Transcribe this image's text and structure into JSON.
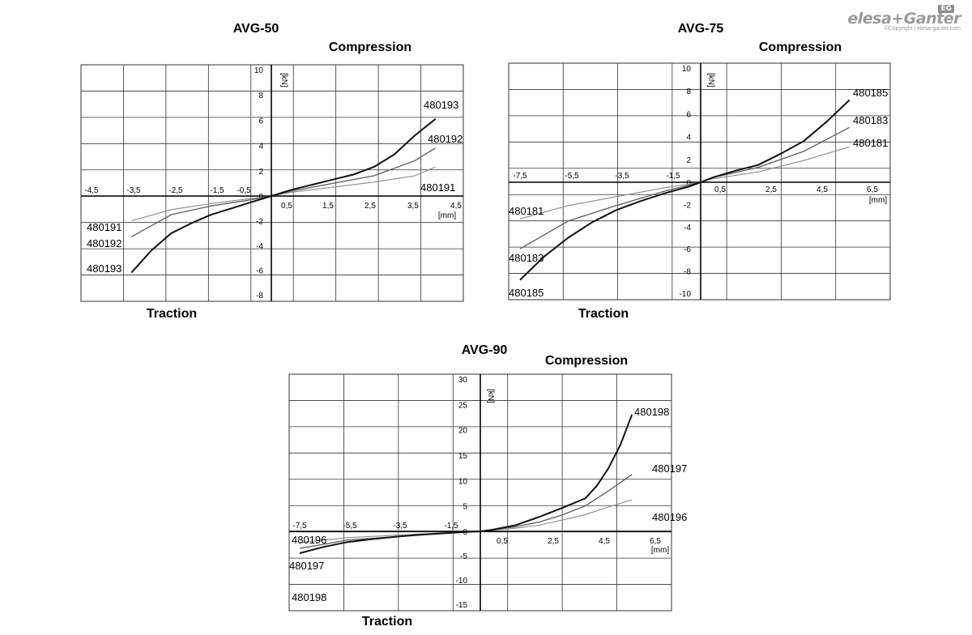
{
  "logo": {
    "brand": "elesa+Ganter",
    "badge": "EG",
    "copyright": "©Copyright | elesa-ganter.com"
  },
  "colors": {
    "grid": "#333333",
    "thin": "#8a8a8a",
    "medium": "#5a5a5a",
    "thick": "#111111"
  },
  "chart_data": [
    {
      "type": "line",
      "title": "AVG-50",
      "top_label": "Compression",
      "bottom_label": "Traction",
      "xunit": "[mm]",
      "yunit": "[kN]",
      "xlim": [
        -4.5,
        4.5
      ],
      "ylim": [
        -8,
        10
      ],
      "x_ticks_neg": [
        "-4,5",
        "-3,5",
        "-2,5",
        "-1,5",
        "-0,5"
      ],
      "x_ticks_pos": [
        "0,5",
        "1,5",
        "2,5",
        "3,5",
        "4,5"
      ],
      "y_ticks": [
        "10",
        "8",
        "6",
        "4",
        "2",
        "0",
        "-2",
        "-4",
        "-6",
        "-8"
      ],
      "grid": true,
      "series": [
        {
          "name": "480191",
          "label_pos": "480191",
          "label_neg": "480191",
          "weight": "thin",
          "x": [
            -3.5,
            -2.5,
            -1.5,
            -0.5,
            0,
            0.5,
            1.5,
            2.5,
            3.5,
            4.0
          ],
          "y": [
            -2.0,
            -1.1,
            -0.6,
            -0.2,
            0,
            0.3,
            0.7,
            1.1,
            1.6,
            2.3
          ]
        },
        {
          "name": "480192",
          "label_pos": "480192",
          "label_neg": "480192",
          "weight": "medium",
          "x": [
            -3.5,
            -2.5,
            -1.5,
            -0.5,
            0,
            0.5,
            1.5,
            2.5,
            3.5,
            4.0
          ],
          "y": [
            -3.3,
            -1.5,
            -0.8,
            -0.3,
            0,
            0.4,
            1.0,
            1.6,
            2.8,
            3.8
          ]
        },
        {
          "name": "480193",
          "label_pos": "480193",
          "label_neg": "480193",
          "weight": "thick",
          "x": [
            -3.5,
            -3.0,
            -2.5,
            -2.0,
            -1.5,
            -1.0,
            -0.5,
            0,
            0.5,
            1.0,
            1.5,
            2.0,
            2.5,
            3.0,
            3.5,
            4.0
          ],
          "y": [
            -6.2,
            -4.4,
            -3.0,
            -2.2,
            -1.5,
            -1.0,
            -0.5,
            0,
            0.5,
            0.9,
            1.3,
            1.7,
            2.3,
            3.3,
            4.8,
            6.1
          ]
        }
      ]
    },
    {
      "type": "line",
      "title": "AVG-75",
      "top_label": "Compression",
      "bottom_label": "Traction",
      "xunit": "[mm]",
      "yunit": "[kN]",
      "xlim": [
        -7.5,
        7.5
      ],
      "ylim": [
        -10,
        10
      ],
      "x_ticks_neg": [
        "-7,5",
        "-5,5",
        "-3,5",
        "-1,5"
      ],
      "x_ticks_pos": [
        "0,5",
        "2,5",
        "4,5",
        "6,5"
      ],
      "y_ticks": [
        "10",
        "8",
        "6",
        "4",
        "2",
        "0",
        "-2",
        "-4",
        "-6",
        "-8",
        "-10"
      ],
      "grid": true,
      "series": [
        {
          "name": "480181",
          "label_pos": "480181",
          "label_neg": "480181",
          "weight": "thin",
          "x": [
            -7.5,
            -5.5,
            -3.5,
            -1.5,
            0,
            0.5,
            2.5,
            4.5,
            6.5
          ],
          "y": [
            -3.3,
            -2.1,
            -1.3,
            -0.5,
            0,
            0.3,
            0.9,
            1.9,
            3.1
          ]
        },
        {
          "name": "480183",
          "label_pos": "480183",
          "label_neg": "480183",
          "weight": "medium",
          "x": [
            -7.5,
            -5.5,
            -3.5,
            -1.5,
            0,
            0.5,
            2.5,
            4.5,
            6.5
          ],
          "y": [
            -6.0,
            -3.5,
            -2.1,
            -0.8,
            0,
            0.4,
            1.3,
            2.7,
            4.8
          ]
        },
        {
          "name": "480185",
          "label_pos": "480185",
          "label_neg": "480185",
          "weight": "thick",
          "x": [
            -7.5,
            -6.5,
            -5.5,
            -4.5,
            -3.5,
            -2.5,
            -1.5,
            -0.5,
            0,
            0.5,
            1.5,
            2.5,
            3.5,
            4.5,
            5.5,
            6.5
          ],
          "y": [
            -8.8,
            -6.7,
            -5.0,
            -3.6,
            -2.5,
            -1.7,
            -1.0,
            -0.4,
            0,
            0.4,
            1.0,
            1.5,
            2.5,
            3.6,
            5.3,
            7.2
          ]
        }
      ]
    },
    {
      "type": "line",
      "title": "AVG-90",
      "top_label": "Compression",
      "bottom_label": "Traction",
      "xunit": "[mm]",
      "yunit": "[kN]",
      "xlim": [
        -7.5,
        7.5
      ],
      "ylim": [
        -15,
        30
      ],
      "x_ticks_neg": [
        "-7,5",
        "-5,5",
        "-3,5",
        "-1,5"
      ],
      "x_ticks_pos": [
        "0,5",
        "2,5",
        "4,5",
        "6,5"
      ],
      "y_ticks": [
        "30",
        "25",
        "20",
        "15",
        "10",
        "5",
        "0",
        "-5",
        "-10",
        "-15"
      ],
      "grid": true,
      "series": [
        {
          "name": "480196",
          "label_pos": "480196",
          "label_neg": "480196",
          "weight": "thin",
          "x": [
            -7.5,
            -5.5,
            -3.5,
            -1.5,
            0,
            1.5,
            2.5,
            3.5,
            4.5,
            5.5,
            6.5
          ],
          "y": [
            -2.3,
            -1.3,
            -0.8,
            -0.3,
            0,
            0.6,
            1.2,
            2.2,
            3.3,
            4.8,
            6.2
          ]
        },
        {
          "name": "480197",
          "label_pos": "480197",
          "label_neg": "480197",
          "weight": "medium",
          "x": [
            -7.5,
            -5.5,
            -3.5,
            -1.5,
            0,
            1.5,
            2.5,
            3.5,
            4.5,
            5.5,
            6.5
          ],
          "y": [
            -3.5,
            -1.8,
            -1.1,
            -0.4,
            0,
            0.9,
            1.8,
            3.2,
            5.0,
            8.0,
            11.2
          ]
        },
        {
          "name": "480198",
          "label_pos": "480198",
          "label_neg": "480198",
          "weight": "thick",
          "x": [
            -7.5,
            -6.5,
            -5.5,
            -4.5,
            -3.5,
            -2.5,
            -1.5,
            -0.5,
            0,
            0.5,
            1.5,
            2.5,
            3.5,
            4.5,
            5.0,
            5.5,
            6.0,
            6.5
          ],
          "y": [
            -4.5,
            -3.2,
            -2.2,
            -1.6,
            -1.1,
            -0.7,
            -0.4,
            -0.1,
            0,
            0.3,
            1.2,
            2.8,
            4.6,
            6.5,
            9.0,
            12.5,
            17.0,
            23.0
          ]
        }
      ]
    }
  ]
}
